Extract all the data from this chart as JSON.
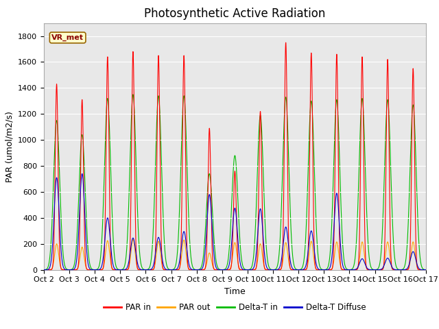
{
  "title": "Photosynthetic Active Radiation",
  "ylabel": "PAR (umol/m2/s)",
  "xlabel": "Time",
  "label_text": "VR_met",
  "ylim": [
    0,
    1900
  ],
  "yticks": [
    0,
    200,
    400,
    600,
    800,
    1000,
    1200,
    1400,
    1600,
    1800
  ],
  "xtick_labels": [
    "Oct 2",
    "Oct 3",
    "Oct 4",
    "Oct 5",
    "Oct 6",
    "Oct 7",
    "Oct 8",
    "Oct 9",
    "Oct 10",
    "Oct 11",
    "Oct 12",
    "Oct 13",
    "Oct 14",
    "Oct 15",
    "Oct 16",
    "Oct 17"
  ],
  "legend_labels": [
    "PAR in",
    "PAR out",
    "Delta-T in",
    "Delta-T Diffuse"
  ],
  "legend_colors": [
    "#ff0000",
    "#ffa500",
    "#00bb00",
    "#0000cc"
  ],
  "fig_bg_color": "#ffffff",
  "plot_bg_color": "#e8e8e8",
  "title_fontsize": 12,
  "axis_fontsize": 9,
  "tick_fontsize": 8,
  "par_in_peaks": [
    1430,
    1310,
    1640,
    1680,
    1650,
    1650,
    1090,
    760,
    1220,
    1750,
    1670,
    1660,
    1640,
    1620,
    1550
  ],
  "par_out_peaks": [
    200,
    175,
    225,
    235,
    220,
    230,
    130,
    210,
    200,
    210,
    220,
    215,
    215,
    215,
    215
  ],
  "delta_in_peaks": [
    1150,
    1040,
    1320,
    1350,
    1340,
    1340,
    740,
    880,
    1190,
    1330,
    1300,
    1310,
    1320,
    1310,
    1270
  ],
  "delta_diff_peaks": [
    710,
    740,
    400,
    245,
    250,
    295,
    580,
    475,
    470,
    330,
    300,
    590,
    85,
    90,
    140
  ]
}
